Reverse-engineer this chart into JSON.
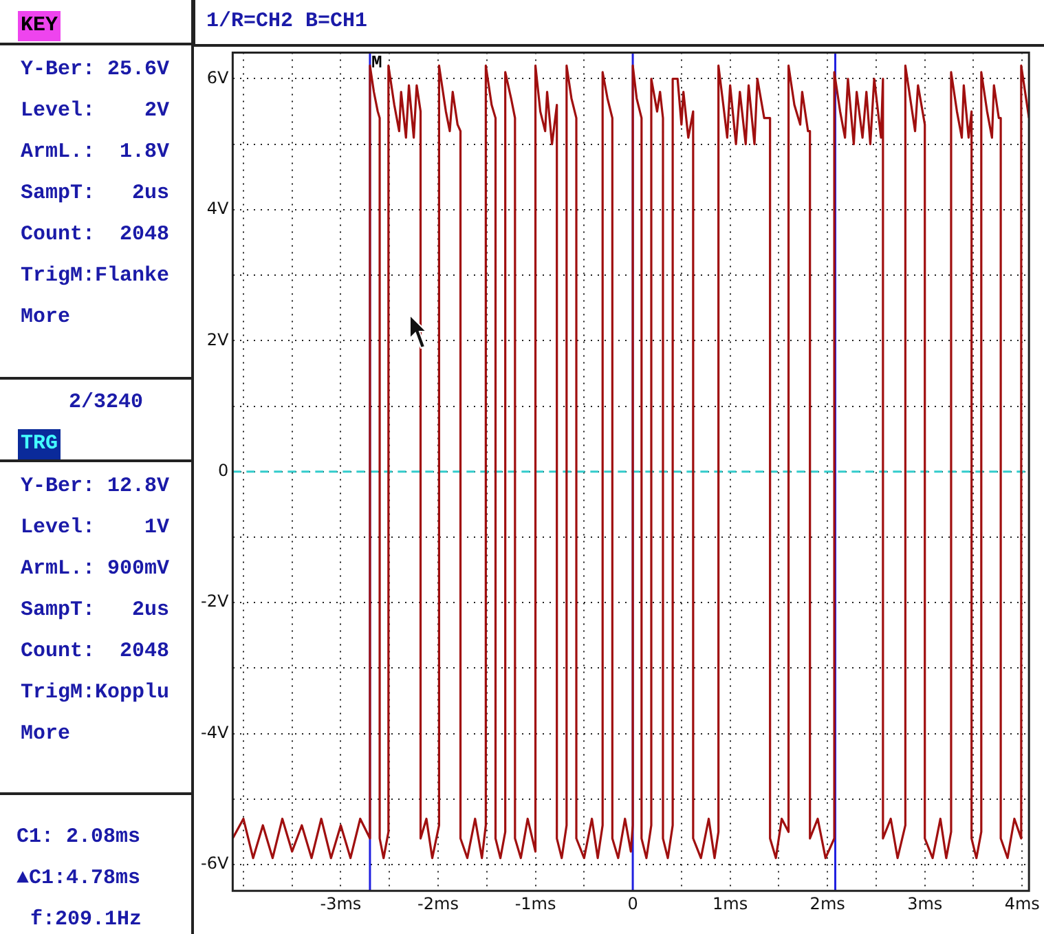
{
  "chart_data": {
    "type": "line",
    "title": "1/R=CH2 B=CH1",
    "annotations": [
      "KEY",
      "Y-Ber: 25.6V",
      "Level:    2V",
      "ArmL.:  1.8V",
      "SampT:   2us",
      "Count:  2048",
      "TrigM:Flanke",
      "More",
      "2/3240",
      "TRG",
      "Y-Ber: 12.8V",
      "Level:    1V",
      "ArmL.: 900mV",
      "SampT:   2us",
      "Count:  2048",
      "TrigM:Kopplu",
      "More",
      "C1: 2.08ms",
      "▲C1:4.78ms",
      "f:209.1Hz"
    ],
    "x": [
      -4.11,
      -4.0,
      -3.9,
      -3.8,
      -3.7,
      -3.6,
      -3.5,
      -3.4,
      -3.3,
      -3.2,
      -3.1,
      -3.0,
      -2.9,
      -2.8,
      -2.7,
      -2.7,
      -2.66,
      -2.62,
      -2.6,
      -2.6,
      -2.56,
      -2.51,
      -2.51,
      -2.45,
      -2.4,
      -2.38,
      -2.33,
      -2.3,
      -2.25,
      -2.22,
      -2.18,
      -2.18,
      -2.12,
      -2.06,
      -1.99,
      -1.99,
      -1.92,
      -1.88,
      -1.85,
      -1.8,
      -1.77,
      -1.77,
      -1.7,
      -1.62,
      -1.55,
      -1.51,
      -1.51,
      -1.45,
      -1.41,
      -1.41,
      -1.36,
      -1.31,
      -1.31,
      -1.25,
      -1.21,
      -1.21,
      -1.15,
      -1.08,
      -1.0,
      -1.0,
      -0.95,
      -0.9,
      -0.88,
      -0.83,
      -0.78,
      -0.78,
      -0.73,
      -0.68,
      -0.68,
      -0.63,
      -0.58,
      -0.58,
      -0.5,
      -0.42,
      -0.36,
      -0.31,
      -0.31,
      -0.26,
      -0.21,
      -0.21,
      -0.15,
      -0.08,
      -0.02,
      0.0,
      0.0,
      0.04,
      0.09,
      0.09,
      0.14,
      0.19,
      0.19,
      0.25,
      0.28,
      0.31,
      0.31,
      0.36,
      0.41,
      0.41,
      0.46,
      0.5,
      0.52,
      0.57,
      0.62,
      0.62,
      0.7,
      0.78,
      0.84,
      0.88,
      0.88,
      0.93,
      0.97,
      1.0,
      1.06,
      1.1,
      1.16,
      1.19,
      1.25,
      1.28,
      1.35,
      1.41,
      1.41,
      1.47,
      1.53,
      1.6,
      1.6,
      1.66,
      1.72,
      1.74,
      1.8,
      1.82,
      1.82,
      1.9,
      1.98,
      2.07,
      2.07,
      2.13,
      2.18,
      2.21,
      2.27,
      2.3,
      2.36,
      2.4,
      2.44,
      2.48,
      2.55,
      2.57,
      2.57,
      2.65,
      2.72,
      2.8,
      2.8,
      2.86,
      2.9,
      2.93,
      3.0,
      3.0,
      3.08,
      3.16,
      3.22,
      3.27,
      3.27,
      3.33,
      3.38,
      3.4,
      3.45,
      3.48,
      3.48,
      3.53,
      3.58,
      3.58,
      3.64,
      3.69,
      3.71,
      3.76,
      3.78,
      3.78,
      3.85,
      3.92,
      3.99,
      3.99,
      4.03,
      4.07
    ],
    "series": [
      {
        "color": "#a00f0f",
        "values": [
          -5.6,
          -5.3,
          -5.9,
          -5.4,
          -5.9,
          -5.3,
          -5.8,
          -5.4,
          -5.9,
          -5.3,
          -5.9,
          -5.4,
          -5.9,
          -5.3,
          -5.6,
          6.2,
          5.8,
          5.5,
          5.4,
          -5.6,
          -5.9,
          -5.5,
          6.2,
          5.6,
          5.2,
          5.8,
          5.1,
          5.9,
          5.1,
          5.9,
          5.5,
          -5.6,
          -5.3,
          -5.9,
          -5.4,
          6.2,
          5.5,
          5.2,
          5.8,
          5.3,
          5.2,
          -5.6,
          -5.9,
          -5.3,
          -5.9,
          -5.4,
          6.2,
          5.6,
          5.4,
          -5.6,
          -5.9,
          -5.5,
          6.1,
          5.7,
          5.4,
          -5.6,
          -5.9,
          -5.3,
          -5.8,
          6.2,
          5.5,
          5.2,
          5.8,
          5.0,
          5.6,
          -5.6,
          -5.9,
          -5.4,
          6.2,
          5.7,
          5.4,
          -5.6,
          -5.9,
          -5.3,
          -5.9,
          -5.4,
          6.1,
          5.7,
          5.4,
          -5.6,
          -5.9,
          -5.3,
          -5.8,
          -5.4,
          6.2,
          5.7,
          5.4,
          -5.6,
          -5.9,
          -5.4,
          6.0,
          5.5,
          5.8,
          5.4,
          -5.6,
          -5.9,
          -5.4,
          6.0,
          6.0,
          5.3,
          5.8,
          5.1,
          5.5,
          -5.6,
          -5.9,
          -5.3,
          -5.9,
          -5.5,
          6.2,
          5.6,
          5.1,
          5.9,
          5.0,
          5.8,
          5.0,
          5.9,
          5.0,
          6.0,
          5.4,
          5.4,
          -5.6,
          -5.9,
          -5.3,
          -5.5,
          6.2,
          5.6,
          5.3,
          5.8,
          5.2,
          5.2,
          -5.6,
          -5.3,
          -5.9,
          -5.6,
          6.1,
          5.5,
          5.1,
          6.0,
          5.0,
          5.8,
          5.1,
          5.8,
          5.0,
          6.0,
          5.1,
          6.0,
          -5.6,
          -5.3,
          -5.9,
          -5.4,
          6.2,
          5.6,
          5.2,
          5.9,
          5.3,
          -5.6,
          -5.9,
          -5.3,
          -5.9,
          -5.5,
          6.1,
          5.5,
          5.1,
          5.9,
          5.1,
          5.5,
          -5.6,
          -5.9,
          -5.5,
          6.1,
          5.5,
          5.1,
          5.9,
          5.4,
          5.4,
          -5.6,
          -5.9,
          -5.3,
          -5.6,
          6.2,
          5.8,
          5.4
        ]
      }
    ],
    "xlim": [
      -4.11,
      4.07
    ],
    "ylim": [
      -6.4,
      6.4
    ],
    "xticks": [
      {
        "value": -4,
        "label": null
      },
      {
        "value": -3.5,
        "label": null
      },
      {
        "value": -3,
        "label": "-3ms"
      },
      {
        "value": -2.5,
        "label": null
      },
      {
        "value": -2,
        "label": "-2ms"
      },
      {
        "value": -1.5,
        "label": null
      },
      {
        "value": -1,
        "label": "-1ms"
      },
      {
        "value": -0.5,
        "label": null
      },
      0,
      {
        "value": 0.5,
        "label": null
      },
      {
        "value": 1,
        "label": "1ms"
      },
      {
        "value": 1.5,
        "label": null
      },
      {
        "value": 2,
        "label": "2ms"
      },
      {
        "value": 2.5,
        "label": null
      },
      {
        "value": 3,
        "label": "3ms"
      },
      {
        "value": 3.5,
        "label": null
      },
      {
        "value": 4,
        "label": "4ms"
      }
    ],
    "yticks": [
      {
        "value": -6,
        "label": "-6V"
      },
      {
        "value": -5,
        "label": null
      },
      {
        "value": -4,
        "label": "-4V"
      },
      {
        "value": -3,
        "label": null
      },
      {
        "value": -2,
        "label": "-2V"
      },
      {
        "value": -1,
        "label": null
      },
      0,
      {
        "value": 1,
        "label": null
      },
      {
        "value": 2,
        "label": "2V"
      },
      {
        "value": 3,
        "label": null
      },
      {
        "value": 4,
        "label": "4V"
      },
      {
        "value": 5,
        "label": null
      },
      {
        "value": 6,
        "label": "6V"
      }
    ],
    "grid": true,
    "marker": "none",
    "line_style": "solid",
    "ref_lines": [
      {
        "axis": "y",
        "value": 0,
        "color": "#33cccc",
        "line_style": "dashed"
      },
      {
        "axis": "x",
        "value": -2.7,
        "label": "M",
        "color": "#2020e0"
      },
      {
        "axis": "x",
        "value": 0,
        "color": "#2020e0"
      },
      {
        "axis": "x",
        "value": 2.08,
        "color": "#2020e0"
      }
    ]
  }
}
